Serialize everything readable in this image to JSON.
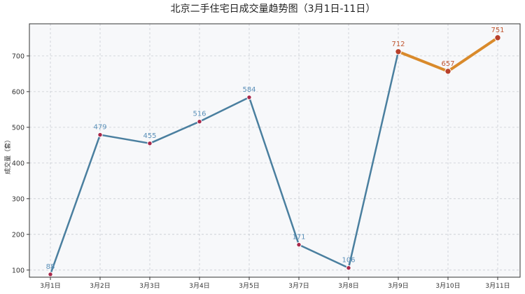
{
  "chart_data": {
    "type": "line",
    "title": "北京二手住宅日成交量趋势图（3月1日-11日）",
    "xlabel": "",
    "ylabel": "成交量（套）",
    "categories": [
      "3月1日",
      "3月2日",
      "3月3日",
      "3月4日",
      "3月5日",
      "3月7日",
      "3月8日",
      "3月9日",
      "3月10日",
      "3月11日"
    ],
    "series": [
      {
        "values": [
          88,
          479,
          455,
          516,
          584,
          171,
          106,
          712,
          657,
          751
        ]
      }
    ],
    "data_labels": [
      "88",
      "479",
      "455",
      "516",
      "584",
      "171",
      "106",
      "712",
      "657",
      "751"
    ],
    "highlight_from_index": 7,
    "ylim": [
      80,
      790
    ],
    "yticks": [
      100,
      200,
      300,
      400,
      500,
      600,
      700
    ],
    "ytick_labels": [
      "100",
      "200",
      "300",
      "400",
      "500",
      "600",
      "700"
    ],
    "grid": true,
    "legend": "none",
    "colors": {
      "line": "#4a7f9f",
      "line_highlight": "#d98a2b",
      "marker_fill": "#a8284a",
      "marker_highlight_fill": "#b8402a",
      "label": "#5a8fb8",
      "label_highlight": "#c0552f",
      "grid": "#c8ccd2",
      "plot_bg": "#f7f8fa",
      "axis": "#333333",
      "title": "#222222"
    }
  }
}
